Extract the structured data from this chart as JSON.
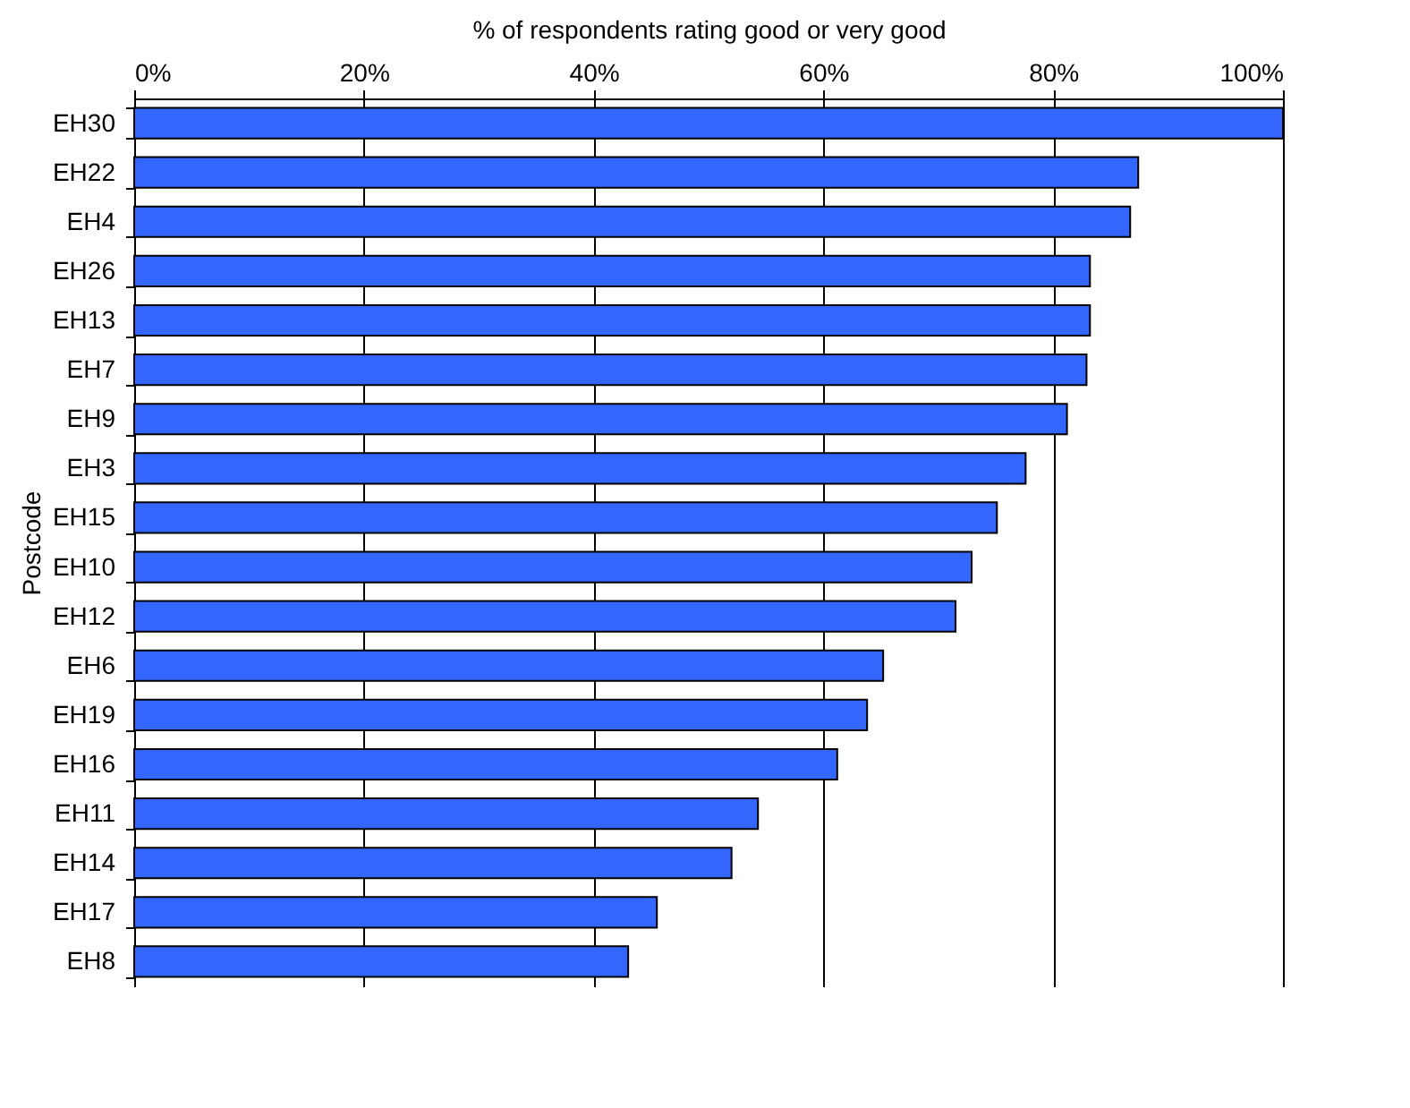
{
  "chart_data": {
    "type": "bar",
    "orientation": "horizontal",
    "xlabel": "% of respondents rating good or very good",
    "ylabel": "Postcode",
    "categories": [
      "EH30",
      "EH22",
      "EH4",
      "EH26",
      "EH13",
      "EH7",
      "EH9",
      "EH3",
      "EH15",
      "EH10",
      "EH12",
      "EH6",
      "EH19",
      "EH16",
      "EH11",
      "EH14",
      "EH17",
      "EH8"
    ],
    "values": [
      100,
      87.4,
      86.7,
      83.2,
      83.2,
      82.9,
      81.2,
      77.6,
      75.1,
      72.9,
      71.5,
      65.2,
      63.8,
      61.2,
      54.3,
      52.0,
      45.5,
      43.0
    ],
    "color": "#3366ff",
    "xlim": [
      0,
      100
    ],
    "xticks": [
      {
        "value": 0,
        "label": "0%"
      },
      {
        "value": 20,
        "label": "20%"
      },
      {
        "value": 40,
        "label": "40%"
      },
      {
        "value": 60,
        "label": "60%"
      },
      {
        "value": 80,
        "label": "80%"
      },
      {
        "value": 100,
        "label": "100%"
      }
    ],
    "grid": "x"
  }
}
